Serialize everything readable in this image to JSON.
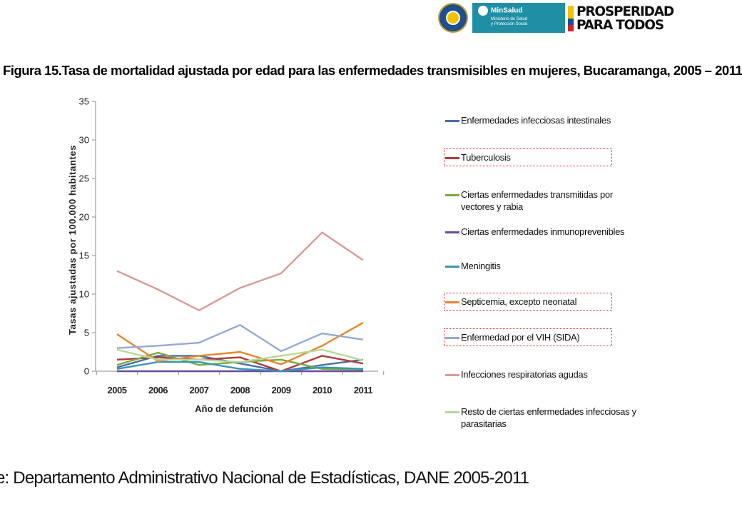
{
  "header": {
    "minsalud_label": "MinSalud",
    "minsalud_sub_1": "Ministerio de Salud",
    "minsalud_sub_2": "y Protección Social",
    "prosperidad_line_1": "PROSPERIDAD",
    "prosperidad_line_2": "PARA TODOS"
  },
  "figure_title": "Figura 15.Tasa de mortalidad ajustada por edad para las enfermedades transmisibles en mujeres, Bucaramanga, 2005 – 2011",
  "source": "e: Departamento Administrativo Nacional de Estadísticas, DANE 2005-2011",
  "chart_data": {
    "type": "line",
    "x": [
      "2005",
      "2006",
      "2007",
      "2008",
      "2009",
      "2010",
      "2011"
    ],
    "xlabel": "Año de defunción",
    "ylabel": "Tasas ajustadas por 100.000 habitantes",
    "ylim": [
      0,
      35
    ],
    "yticks": [
      0,
      5,
      10,
      15,
      20,
      25,
      30,
      35
    ],
    "grid": false,
    "legend_position": "right",
    "series": [
      {
        "name": "Enfermedades infecciosas intestinales",
        "color": "#4a6ea8",
        "highlighted": false,
        "values": [
          0.5,
          2.0,
          2.0,
          1.0,
          0.0,
          0.8,
          1.5
        ]
      },
      {
        "name": "Tuberculosis",
        "color": "#b03a3a",
        "highlighted": true,
        "values": [
          1.5,
          1.8,
          1.5,
          1.8,
          0.0,
          2.0,
          1.0
        ]
      },
      {
        "name": "Ciertas enfermedades transmitidas por vectores y rabia",
        "color": "#7aaa3c",
        "highlighted": false,
        "values": [
          0.8,
          2.4,
          0.8,
          1.2,
          1.5,
          0.3,
          0.2
        ]
      },
      {
        "name": "Ciertas enfermedades inmunoprevenibles",
        "color": "#6a4a9e",
        "highlighted": false,
        "values": [
          0.0,
          0.0,
          0.0,
          0.0,
          0.0,
          0.0,
          0.0
        ]
      },
      {
        "name": "Meningitis",
        "color": "#3a96b8",
        "highlighted": false,
        "values": [
          0.3,
          1.2,
          1.2,
          0.3,
          0.0,
          0.5,
          0.3
        ]
      },
      {
        "name": "Septicemia, excepto neonatal",
        "color": "#e8862a",
        "highlighted": true,
        "values": [
          4.8,
          1.3,
          2.0,
          2.5,
          0.9,
          3.3,
          6.3
        ]
      },
      {
        "name": "Enfermedad por el VIH (SIDA)",
        "color": "#93a9d6",
        "highlighted": true,
        "values": [
          3.0,
          3.3,
          3.7,
          6.0,
          2.6,
          4.9,
          4.1
        ]
      },
      {
        "name": "Infecciones respiratorias agudas",
        "color": "#d99a9a",
        "highlighted": false,
        "values": [
          13.0,
          10.6,
          7.9,
          10.8,
          12.7,
          18.0,
          14.4
        ]
      },
      {
        "name": "Resto de ciertas enfermedades infecciosas y parasitarias",
        "color": "#b9d69a",
        "highlighted": false,
        "values": [
          2.8,
          1.5,
          1.5,
          1.2,
          2.0,
          2.8,
          1.4
        ]
      }
    ]
  }
}
